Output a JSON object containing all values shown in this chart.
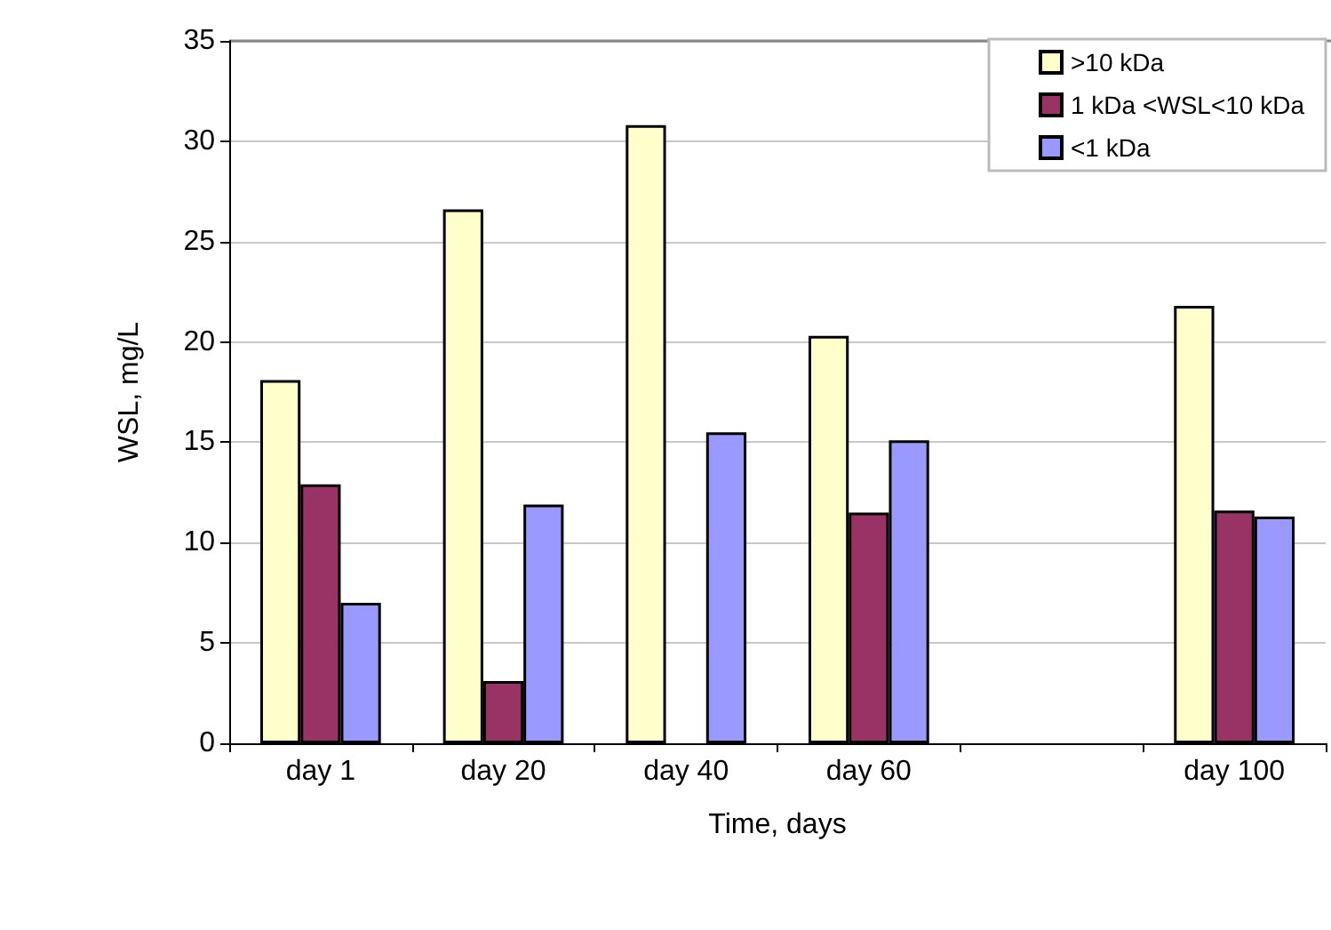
{
  "chart_data": {
    "type": "bar",
    "xlabel": "Time, days",
    "ylabel": "WSL, mg/L",
    "categories": [
      "day 1",
      "day 20",
      "day 40",
      "day 60",
      null,
      "day 100"
    ],
    "series": [
      {
        "name": ">10 kDa",
        "color": "#ffffcc",
        "values": [
          18.1,
          26.6,
          30.8,
          20.3,
          null,
          21.8
        ]
      },
      {
        "name": "1 kDa <WSL<10 kDa",
        "color": "#993366",
        "values": [
          12.9,
          3.1,
          null,
          11.5,
          null,
          11.6
        ]
      },
      {
        "name": "<1 kDa",
        "color": "#9999ff",
        "values": [
          7.0,
          11.9,
          15.5,
          15.1,
          null,
          11.3
        ]
      }
    ],
    "ylim": [
      0,
      35
    ],
    "yticks": [
      0,
      5,
      10,
      15,
      20,
      25,
      30,
      35
    ],
    "grid": "y",
    "legend": "top right"
  }
}
